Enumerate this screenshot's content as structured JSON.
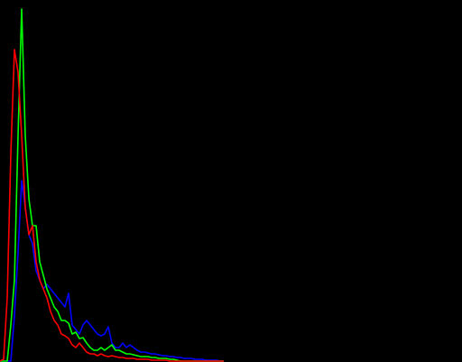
{
  "chart_data": {
    "type": "line",
    "x": [
      0,
      2,
      4,
      6,
      8,
      10,
      12,
      14,
      16,
      18,
      20,
      22,
      24,
      26,
      28,
      30,
      32,
      34,
      36,
      38,
      40,
      42,
      44,
      46,
      48,
      50,
      52,
      54,
      56,
      58,
      60,
      62,
      64,
      66,
      68,
      70,
      72,
      74,
      76,
      78,
      80,
      82,
      84,
      86,
      88,
      90,
      92,
      94,
      96,
      98,
      100,
      102,
      104,
      106,
      108,
      110,
      112,
      114,
      116,
      118,
      120,
      122,
      124
    ],
    "xlim": [
      0,
      256
    ],
    "ylim": [
      0,
      400
    ],
    "series": [
      {
        "color": "#0000ff",
        "values": [
          0,
          0,
          0,
          0,
          50,
          120,
          200,
          170,
          140,
          130,
          100,
          90,
          80,
          85,
          80,
          75,
          70,
          65,
          60,
          75,
          40,
          35,
          30,
          40,
          45,
          40,
          35,
          30,
          28,
          30,
          38,
          20,
          15,
          15,
          20,
          15,
          18,
          15,
          12,
          10,
          10,
          9,
          8,
          8,
          7,
          6,
          6,
          5,
          5,
          4,
          4,
          3,
          3,
          3,
          2,
          2,
          2,
          1,
          1,
          1,
          1,
          0,
          0
        ]
      },
      {
        "color": "#00ff00",
        "values": [
          0,
          0,
          0,
          40,
          90,
          250,
          390,
          250,
          180,
          150,
          150,
          110,
          95,
          80,
          70,
          60,
          55,
          45,
          45,
          42,
          30,
          32,
          25,
          26,
          20,
          15,
          12,
          12,
          15,
          12,
          15,
          18,
          12,
          12,
          10,
          8,
          8,
          7,
          6,
          5,
          5,
          5,
          4,
          4,
          3,
          3,
          3,
          2,
          2,
          1,
          0,
          0,
          0,
          0,
          0,
          0,
          0,
          0,
          0,
          0,
          0,
          0,
          0
        ]
      },
      {
        "color": "#ff0000",
        "values": [
          0,
          2,
          70,
          230,
          345,
          320,
          250,
          170,
          140,
          150,
          110,
          90,
          80,
          70,
          55,
          45,
          40,
          30,
          28,
          25,
          18,
          15,
          20,
          15,
          10,
          8,
          8,
          6,
          8,
          6,
          5,
          6,
          5,
          4,
          4,
          3,
          3,
          3,
          2,
          2,
          2,
          2,
          1,
          1,
          1,
          1,
          1,
          0,
          0,
          0,
          0,
          0,
          0,
          0,
          0,
          0,
          0,
          0,
          0,
          0,
          0,
          0,
          0
        ]
      }
    ]
  }
}
